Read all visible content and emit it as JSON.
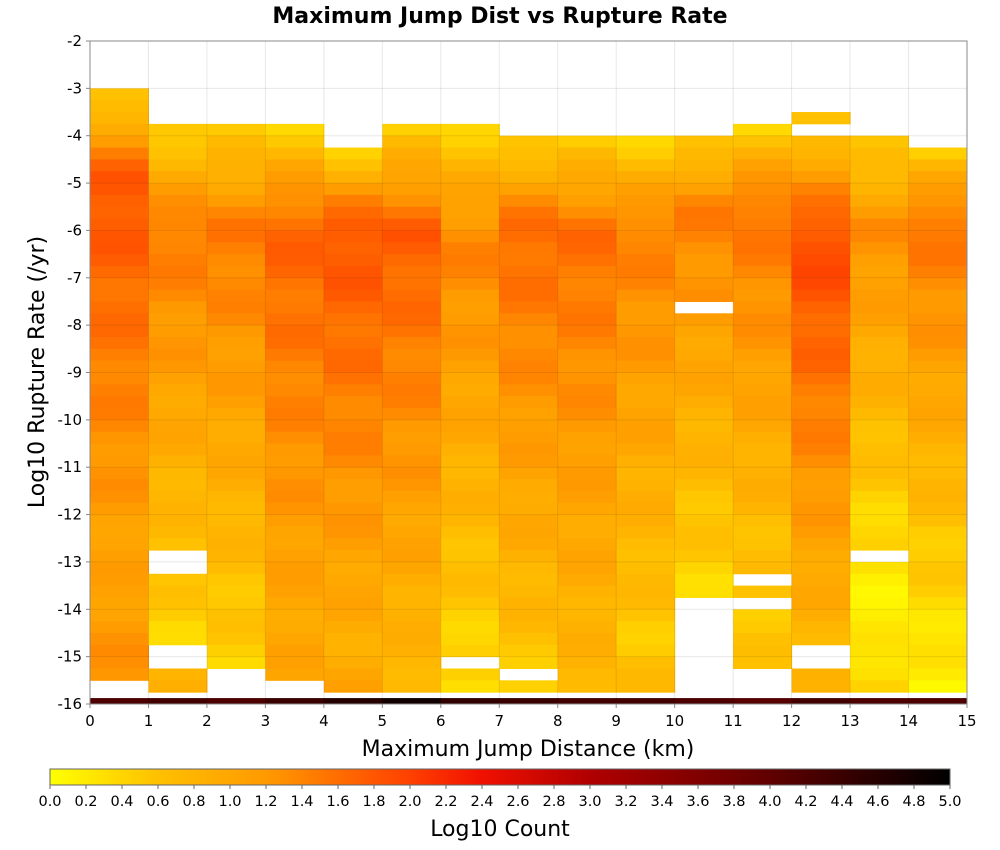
{
  "chart_data": {
    "type": "heatmap",
    "title": "Maximum Jump Dist vs Rupture Rate",
    "xlabel": "Maximum Jump Distance (km)",
    "ylabel": "Log10 Rupture Rate (/yr)",
    "xlim": [
      0,
      15
    ],
    "ylim": [
      -16,
      -2
    ],
    "x_ticks": [
      "0",
      "1",
      "2",
      "3",
      "4",
      "5",
      "6",
      "7",
      "8",
      "9",
      "10",
      "11",
      "12",
      "13",
      "14",
      "15"
    ],
    "y_ticks": [
      "-2",
      "-3",
      "-4",
      "-5",
      "-6",
      "-7",
      "-8",
      "-9",
      "-10",
      "-11",
      "-12",
      "-13",
      "-14",
      "-15",
      "-16"
    ],
    "grid": true,
    "x_bin_width": 1,
    "y_bin_width": 0.25,
    "colorbar": {
      "label": "Log10 Count",
      "range": [
        0,
        5
      ],
      "ticks": [
        "0.0",
        "0.2",
        "0.4",
        "0.6",
        "0.8",
        "1.0",
        "1.2",
        "1.4",
        "1.6",
        "1.8",
        "2.0",
        "2.2",
        "2.4",
        "2.6",
        "2.8",
        "3.0",
        "3.2",
        "3.4",
        "3.6",
        "3.8",
        "4.0",
        "4.2",
        "4.4",
        "4.6",
        "4.8",
        "5.0"
      ],
      "colors": [
        {
          "value": 0.0,
          "color": "#ffff00"
        },
        {
          "value": 0.6,
          "color": "#ffc000"
        },
        {
          "value": 1.2,
          "color": "#ff9a00"
        },
        {
          "value": 2.0,
          "color": "#ff4000"
        },
        {
          "value": 2.4,
          "color": "#f01000"
        },
        {
          "value": 3.0,
          "color": "#b00000"
        },
        {
          "value": 4.0,
          "color": "#600000"
        },
        {
          "value": 5.0,
          "color": "#000000"
        }
      ]
    },
    "columns": [
      {
        "x": 0.5,
        "y_max": -3.0,
        "peak_y": -5.0,
        "peak": 1.85,
        "low_y": -13.0,
        "low": 1.05,
        "bottom": 1.3,
        "gaps": [
          -15.5
        ]
      },
      {
        "x": 1.5,
        "y_max": -3.75,
        "peak_y": -6.0,
        "peak": 1.5,
        "low_y": -14.5,
        "low": 0.4,
        "bottom": 0.8,
        "gaps": [
          -12.75,
          -13.0,
          -14.75,
          -15.0,
          -15.75
        ]
      },
      {
        "x": 2.5,
        "y_max": -3.75,
        "peak_y": -6.0,
        "peak": 1.5,
        "low_y": -14.5,
        "low": 0.5,
        "bottom": 0.4,
        "gaps": [
          -15.25,
          -15.5
        ]
      },
      {
        "x": 3.5,
        "y_max": -3.75,
        "peak_y": -6.0,
        "peak": 1.7,
        "low_y": -14.0,
        "low": 1.0,
        "bottom": 1.0,
        "gaps": [
          -15.5,
          -15.75
        ]
      },
      {
        "x": 4.5,
        "y_max": -4.25,
        "peak_y": -6.0,
        "peak": 1.85,
        "low_y": -14.5,
        "low": 0.9,
        "bottom": 1.0,
        "gaps": []
      },
      {
        "x": 5.5,
        "y_max": -3.75,
        "peak_y": -6.0,
        "peak": 1.75,
        "low_y": -14.5,
        "low": 0.8,
        "bottom": 0.8,
        "gaps": []
      },
      {
        "x": 6.5,
        "y_max": -3.75,
        "peak_y": -6.25,
        "peak": 1.4,
        "low_y": -15.0,
        "low": 0.4,
        "bottom": 0.3,
        "gaps": [
          -15.0
        ]
      },
      {
        "x": 7.5,
        "y_max": -4.0,
        "peak_y": -6.0,
        "peak": 1.65,
        "low_y": -15.0,
        "low": 0.6,
        "bottom": 0.3,
        "gaps": [
          -15.25
        ]
      },
      {
        "x": 8.5,
        "y_max": -4.0,
        "peak_y": -6.0,
        "peak": 1.6,
        "low_y": -14.5,
        "low": 0.8,
        "bottom": 0.8,
        "gaps": []
      },
      {
        "x": 9.5,
        "y_max": -4.0,
        "peak_y": -6.0,
        "peak": 1.45,
        "low_y": -15.0,
        "low": 0.5,
        "bottom": 0.7,
        "gaps": []
      },
      {
        "x": 10.5,
        "y_max": -4.0,
        "peak_y": -5.5,
        "peak": 1.45,
        "low_y": -13.5,
        "low": 0.4,
        "bottom": 0.3,
        "gaps": [
          -7.5,
          -13.75,
          -14.0,
          -14.25,
          -14.5,
          -14.75,
          -15.0,
          -15.25,
          -15.5,
          -15.75
        ]
      },
      {
        "x": 11.5,
        "y_max": -3.75,
        "peak_y": -5.5,
        "peak": 1.55,
        "low_y": -13.0,
        "low": 0.6,
        "bottom": 0.5,
        "gaps": [
          -13.25,
          -13.75,
          -15.25,
          -15.5
        ]
      },
      {
        "x": 12.5,
        "y_max": -3.5,
        "peak_y": -6.25,
        "peak": 1.95,
        "low_y": -14.5,
        "low": 0.8,
        "bottom": 0.7,
        "gaps": [
          -3.75,
          -14.75,
          -15.0
        ]
      },
      {
        "x": 13.5,
        "y_max": -4.0,
        "peak_y": -6.0,
        "peak": 1.3,
        "low_y": -14.25,
        "low": 0.1,
        "bottom": 0.5,
        "gaps": [
          -12.75,
          -15.75
        ]
      },
      {
        "x": 14.5,
        "y_max": -4.25,
        "peak_y": -5.75,
        "peak": 1.55,
        "low_y": -15.0,
        "low": 0.2,
        "bottom": 0.1,
        "gaps": []
      }
    ],
    "bottom_row": {
      "y": -15.875,
      "values": [
        4.2,
        4.3,
        4.2,
        4.4,
        4.6,
        4.8,
        4.5,
        4.4,
        4.3,
        4.3,
        4.2,
        4.1,
        4.3,
        4.2,
        4.2
      ]
    }
  }
}
